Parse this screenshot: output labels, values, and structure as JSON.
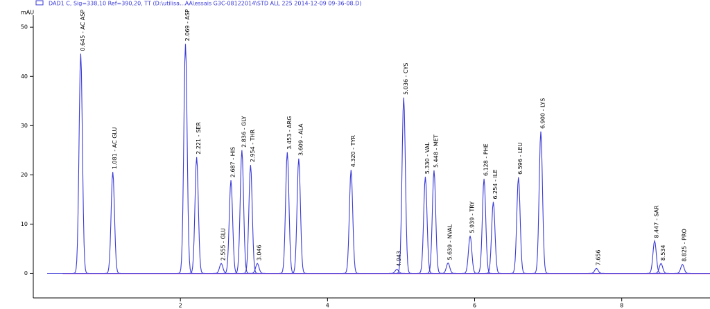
{
  "chart_data": {
    "type": "chromatogram",
    "title": "DAD1 C, Sig=338,10 Ref=390,20, TT (D:\\utilisa...AA\\essais G3C-08122014\\STD ALL 225 2014-12-09 09-36-08.D)",
    "y_label": "mAU",
    "color": "#3a3ad6",
    "baseline_color": "#e040c0",
    "xlim": [
      0,
      9.2
    ],
    "ylim": [
      -5,
      52
    ],
    "xticks": [
      2,
      4,
      6,
      8
    ],
    "yticks": [
      0,
      10,
      20,
      30,
      40,
      50
    ],
    "x": [
      0.645,
      1.081,
      2.069,
      2.221,
      2.555,
      2.687,
      2.836,
      2.954,
      3.046,
      3.453,
      3.609,
      4.32,
      4.943,
      5.036,
      5.33,
      5.448,
      5.639,
      5.939,
      6.128,
      6.254,
      6.596,
      6.9,
      7.656,
      8.447,
      8.534,
      8.825
    ],
    "values": [
      44.6,
      20.6,
      46.6,
      23.6,
      2,
      18.9,
      25,
      22,
      2,
      24.6,
      23.3,
      21,
      0.8,
      35.7,
      19.6,
      20.9,
      2.1,
      7.6,
      19.2,
      14.5,
      19.5,
      28.8,
      1,
      6.6,
      2,
      1.8
    ],
    "labels": [
      "0.645 - AC ASP",
      "1.081 - AC GLU",
      "2.069 - ASP",
      "2.221 - SER",
      "2.555 - GLU",
      "2.687 - HIS",
      "2.836 - GLY",
      "2.954 - THR",
      "3.046",
      "3.453 - ARG",
      "3.609 - ALA",
      "4.320 - TYR",
      "4.943",
      "5.036 - CYS",
      "5.330 - VAL",
      "5.448 - MET",
      "5.639 - NVAL",
      "5.939 - TRY",
      "6.128 - PHE",
      "6.254 - ILE",
      "6.596 - LEU",
      "6.900 - LYS",
      "7.656",
      "8.447 - SAR",
      "8.534",
      "8.825 - PRO"
    ]
  }
}
